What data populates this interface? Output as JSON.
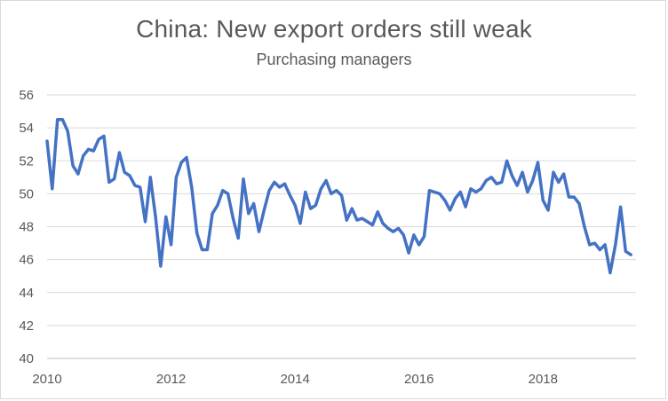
{
  "chart_data": {
    "type": "line",
    "title": "China: New export orders still weak",
    "subtitle": "Purchasing managers",
    "xlabel": "",
    "ylabel": "",
    "xlim": [
      2010,
      2019.5
    ],
    "ylim": [
      40,
      56
    ],
    "x_ticks": [
      2010,
      2012,
      2014,
      2016,
      2018
    ],
    "y_ticks": [
      40,
      42,
      44,
      46,
      48,
      50,
      52,
      54,
      56
    ],
    "grid": "horizontal",
    "legend": "none",
    "series": [
      {
        "color": "#4472C4",
        "x": [
          2010.0,
          2010.083,
          2010.167,
          2010.25,
          2010.333,
          2010.417,
          2010.5,
          2010.583,
          2010.667,
          2010.75,
          2010.833,
          2010.917,
          2011.0,
          2011.083,
          2011.167,
          2011.25,
          2011.333,
          2011.417,
          2011.5,
          2011.583,
          2011.667,
          2011.75,
          2011.833,
          2011.917,
          2012.0,
          2012.083,
          2012.167,
          2012.25,
          2012.333,
          2012.417,
          2012.5,
          2012.583,
          2012.667,
          2012.75,
          2012.833,
          2012.917,
          2013.0,
          2013.083,
          2013.167,
          2013.25,
          2013.333,
          2013.417,
          2013.5,
          2013.583,
          2013.667,
          2013.75,
          2013.833,
          2013.917,
          2014.0,
          2014.083,
          2014.167,
          2014.25,
          2014.333,
          2014.417,
          2014.5,
          2014.583,
          2014.667,
          2014.75,
          2014.833,
          2014.917,
          2015.0,
          2015.083,
          2015.167,
          2015.25,
          2015.333,
          2015.417,
          2015.5,
          2015.583,
          2015.667,
          2015.75,
          2015.833,
          2015.917,
          2016.0,
          2016.083,
          2016.167,
          2016.25,
          2016.333,
          2016.417,
          2016.5,
          2016.583,
          2016.667,
          2016.75,
          2016.833,
          2016.917,
          2017.0,
          2017.083,
          2017.167,
          2017.25,
          2017.333,
          2017.417,
          2017.5,
          2017.583,
          2017.667,
          2017.75,
          2017.833,
          2017.917,
          2018.0,
          2018.083,
          2018.167,
          2018.25,
          2018.333,
          2018.417,
          2018.5,
          2018.583,
          2018.667,
          2018.75,
          2018.833,
          2018.917,
          2019.0,
          2019.083,
          2019.167,
          2019.25,
          2019.333,
          2019.417
        ],
        "y": [
          53.2,
          50.3,
          54.5,
          54.5,
          53.8,
          51.7,
          51.2,
          52.3,
          52.7,
          52.6,
          53.3,
          53.5,
          50.7,
          50.9,
          52.5,
          51.3,
          51.1,
          50.5,
          50.4,
          48.3,
          51.0,
          48.6,
          45.6,
          48.6,
          46.9,
          51.0,
          51.9,
          52.2,
          50.4,
          47.6,
          46.6,
          46.6,
          48.8,
          49.3,
          50.2,
          50.0,
          48.5,
          47.3,
          50.9,
          48.8,
          49.4,
          47.7,
          49.0,
          50.2,
          50.7,
          50.4,
          50.6,
          49.9,
          49.3,
          48.2,
          50.1,
          49.1,
          49.3,
          50.3,
          50.8,
          50.0,
          50.2,
          49.9,
          48.4,
          49.1,
          48.4,
          48.5,
          48.3,
          48.1,
          48.9,
          48.2,
          47.9,
          47.7,
          47.9,
          47.5,
          46.4,
          47.5,
          46.9,
          47.4,
          50.2,
          50.1,
          50.0,
          49.6,
          49.0,
          49.7,
          50.1,
          49.2,
          50.3,
          50.1,
          50.3,
          50.8,
          51.0,
          50.6,
          50.7,
          52.0,
          51.1,
          50.5,
          51.3,
          50.1,
          50.8,
          51.9,
          49.6,
          49.0,
          51.3,
          50.7,
          51.2,
          49.8,
          49.8,
          49.4,
          48.0,
          46.9,
          47.0,
          46.6,
          46.9,
          45.2,
          46.9,
          49.2,
          46.5,
          46.3
        ]
      }
    ]
  }
}
